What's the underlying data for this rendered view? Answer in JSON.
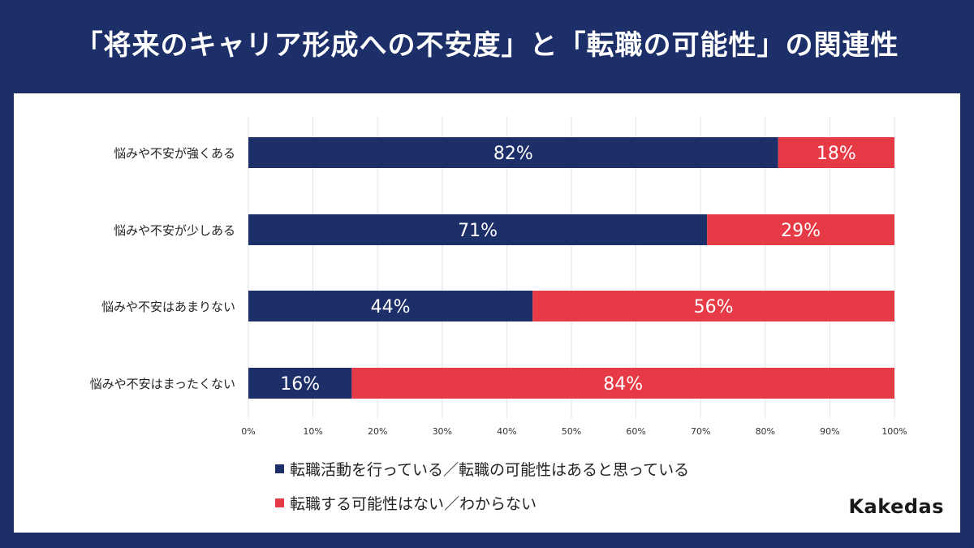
{
  "colors": {
    "background": "#1c2f68",
    "series_yes": "#1c2f68",
    "series_no": "#e63a46",
    "grid": "#e3e3e3",
    "label_text": "#ffffff"
  },
  "brand": "Kakedas",
  "chart_data": {
    "type": "bar",
    "orientation": "horizontal",
    "stacked": true,
    "title": "「将来のキャリア形成への不安度」と「転職の可能性」の関連性",
    "categories": [
      "悩みや不安が強くある",
      "悩みや不安が少しある",
      "悩みや不安はあまりない",
      "悩みや不安はまったくない"
    ],
    "series": [
      {
        "name": "転職活動を行っている／転職の可能性はあると思っている",
        "values": [
          82,
          71,
          44,
          16
        ],
        "labels": [
          "82%",
          "71%",
          "44%",
          "16%"
        ]
      },
      {
        "name": "転職する可能性はない／わからない",
        "values": [
          18,
          29,
          56,
          84
        ],
        "labels": [
          "18%",
          "29%",
          "56%",
          "84%"
        ]
      }
    ],
    "xlim": [
      0,
      100
    ],
    "xticks": [
      "0%",
      "10%",
      "20%",
      "30%",
      "40%",
      "50%",
      "60%",
      "70%",
      "80%",
      "90%",
      "100%"
    ],
    "xlabel": "",
    "ylabel": "",
    "grid": true,
    "legend_position": "bottom"
  }
}
